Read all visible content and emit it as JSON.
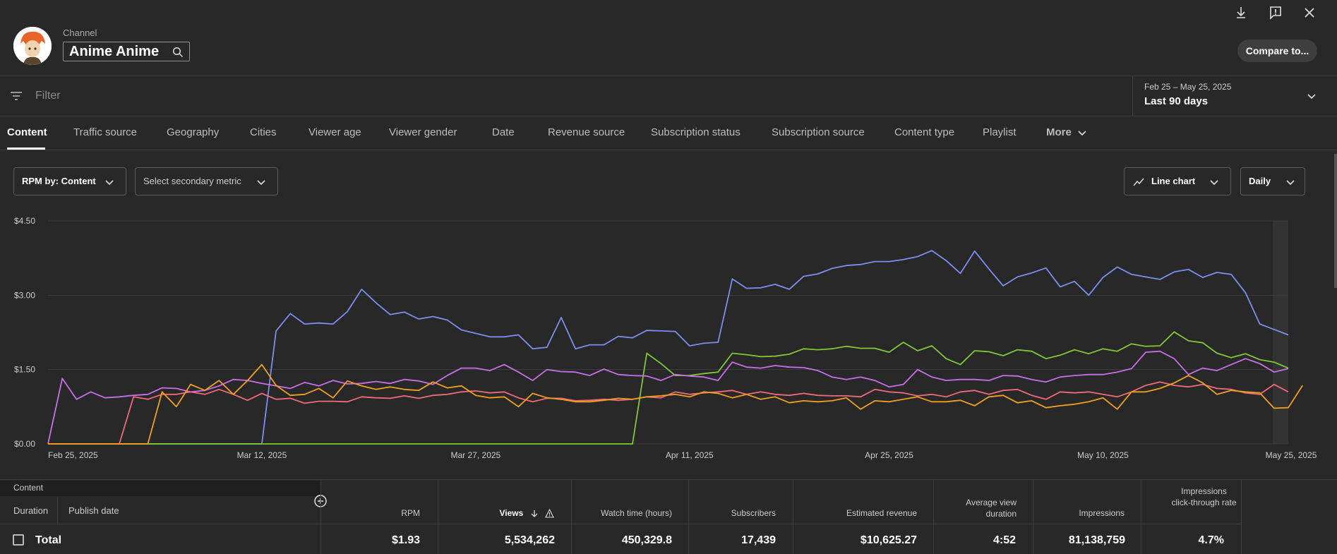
{
  "header": {
    "channel_label": "Channel",
    "channel_name": "Anime Anime",
    "compare_label": "Compare to..."
  },
  "filter": {
    "placeholder": "Filter",
    "date_range": "Feb 25 – May 25, 2025",
    "date_period": "Last 90 days"
  },
  "tabs": [
    {
      "label": "Content"
    },
    {
      "label": "Traffic source"
    },
    {
      "label": "Geography"
    },
    {
      "label": "Cities"
    },
    {
      "label": "Viewer age"
    },
    {
      "label": "Viewer gender"
    },
    {
      "label": "Date"
    },
    {
      "label": "Revenue source"
    },
    {
      "label": "Subscription status"
    },
    {
      "label": "Subscription source"
    },
    {
      "label": "Content type"
    },
    {
      "label": "Playlist"
    },
    {
      "label": "More"
    }
  ],
  "controls": {
    "metric": "RPM by: Content",
    "secondary": "Select secondary metric",
    "chart_type": "Line chart",
    "granularity": "Daily"
  },
  "chart_data": {
    "type": "line",
    "y_ticks": [
      "$4.50",
      "$3.00",
      "$1.50",
      "$0.00"
    ],
    "ylim": [
      0,
      4.5
    ],
    "x_tick_labels": [
      "Feb 25, 2025",
      "Mar 12, 2025",
      "Mar 27, 2025",
      "Apr 11, 2025",
      "Apr 25, 2025",
      "May 10, 2025",
      "May 25, 2025"
    ],
    "x_tick_days": [
      0,
      15,
      30,
      45,
      59,
      74,
      89
    ],
    "grid": true,
    "series": [
      {
        "color": "#7b8ef0",
        "values": [
          0,
          0,
          0,
          0,
          0,
          0,
          0,
          0,
          0,
          0,
          0,
          0,
          0,
          0,
          0,
          0,
          2.28,
          2.63,
          2.42,
          2.44,
          2.42,
          2.67,
          3.12,
          2.85,
          2.61,
          2.66,
          2.52,
          2.57,
          2.5,
          2.3,
          2.23,
          2.16,
          2.16,
          2.2,
          1.92,
          1.95,
          2.55,
          1.92,
          2.0,
          2.0,
          2.17,
          2.14,
          2.29,
          2.28,
          2.27,
          1.98,
          2.03,
          2.05,
          3.33,
          3.14,
          3.15,
          3.22,
          3.12,
          3.38,
          3.43,
          3.54,
          3.6,
          3.62,
          3.68,
          3.68,
          3.72,
          3.78,
          3.9,
          3.7,
          3.44,
          3.89,
          3.53,
          3.19,
          3.37,
          3.45,
          3.55,
          3.17,
          3.28,
          3.0,
          3.36,
          3.57,
          3.42,
          3.37,
          3.32,
          3.47,
          3.52,
          3.36,
          3.46,
          3.42,
          3.05,
          2.42,
          2.31,
          2.2
        ]
      },
      {
        "color": "#80c836",
        "values": [
          0,
          0,
          0,
          0,
          0,
          0,
          0,
          0,
          0,
          0,
          0,
          0,
          0,
          0,
          0,
          0,
          0,
          0,
          0,
          0,
          0,
          0,
          0,
          0,
          0,
          0,
          0,
          0,
          0,
          0,
          0,
          0,
          0,
          0,
          0,
          0,
          0,
          0,
          0,
          0,
          0,
          0,
          1.83,
          1.62,
          1.38,
          1.38,
          1.42,
          1.45,
          1.83,
          1.8,
          1.76,
          1.77,
          1.81,
          1.92,
          1.9,
          1.92,
          1.97,
          1.93,
          1.93,
          1.85,
          2.05,
          1.88,
          1.98,
          1.72,
          1.6,
          1.88,
          1.86,
          1.78,
          1.9,
          1.87,
          1.72,
          1.79,
          1.9,
          1.82,
          1.92,
          1.87,
          2.02,
          1.97,
          1.98,
          2.26,
          2.08,
          2.04,
          1.83,
          1.74,
          1.82,
          1.7,
          1.65,
          1.53
        ]
      },
      {
        "color": "#c86ee8",
        "values": [
          0,
          1.32,
          0.9,
          1.05,
          0.93,
          0.95,
          0.98,
          1.0,
          1.13,
          1.12,
          1.05,
          1.08,
          1.17,
          1.3,
          1.28,
          1.22,
          1.17,
          1.12,
          1.24,
          1.17,
          1.28,
          1.21,
          1.22,
          1.26,
          1.22,
          1.3,
          1.27,
          1.2,
          1.38,
          1.53,
          1.53,
          1.48,
          1.6,
          1.45,
          1.28,
          1.5,
          1.46,
          1.45,
          1.38,
          1.51,
          1.4,
          1.38,
          1.37,
          1.28,
          1.4,
          1.37,
          1.35,
          1.28,
          1.65,
          1.55,
          1.53,
          1.58,
          1.55,
          1.54,
          1.48,
          1.35,
          1.3,
          1.35,
          1.28,
          1.15,
          1.2,
          1.5,
          1.35,
          1.28,
          1.3,
          1.3,
          1.28,
          1.38,
          1.37,
          1.3,
          1.25,
          1.35,
          1.38,
          1.4,
          1.4,
          1.45,
          1.52,
          1.85,
          1.87,
          1.72,
          1.4,
          1.53,
          1.48,
          1.6,
          1.72,
          1.62,
          1.45,
          1.52
        ]
      },
      {
        "color": "#f06a7a",
        "values": [
          0,
          0,
          0,
          0,
          0,
          0,
          0.95,
          0.9,
          1.0,
          1.0,
          1.05,
          1.0,
          1.1,
          1.0,
          0.88,
          1.02,
          0.9,
          0.92,
          0.82,
          0.86,
          0.86,
          0.85,
          0.95,
          0.93,
          0.92,
          0.97,
          0.92,
          0.98,
          1.0,
          1.05,
          1.07,
          1.03,
          1.05,
          0.93,
          0.85,
          0.92,
          0.92,
          0.87,
          0.88,
          0.9,
          0.88,
          0.9,
          0.95,
          0.93,
          1.05,
          1.0,
          1.03,
          1.05,
          1.08,
          1.0,
          1.05,
          1.0,
          0.98,
          1.02,
          0.98,
          0.97,
          0.97,
          0.95,
          1.1,
          1.05,
          1.03,
          0.97,
          1.0,
          0.95,
          1.05,
          1.08,
          1.0,
          1.08,
          1.1,
          0.98,
          0.9,
          1.05,
          1.03,
          1.05,
          1.0,
          0.95,
          1.05,
          1.18,
          1.25,
          1.18,
          1.15,
          1.2,
          1.12,
          1.1,
          1.03,
          1.0,
          1.2,
          1.05
        ]
      },
      {
        "color": "#f0a020",
        "values": [
          0,
          0,
          0,
          0,
          0,
          0,
          0,
          0,
          1.05,
          0.75,
          1.2,
          1.08,
          1.28,
          1.0,
          1.28,
          1.6,
          1.18,
          0.98,
          1.0,
          1.12,
          0.93,
          1.27,
          1.17,
          1.1,
          1.15,
          1.1,
          1.08,
          1.25,
          1.13,
          1.17,
          0.98,
          0.93,
          0.95,
          0.75,
          1.02,
          0.93,
          0.9,
          0.85,
          0.85,
          0.88,
          0.92,
          0.9,
          0.95,
          0.97,
          1.0,
          0.95,
          1.05,
          1.02,
          0.93,
          1.0,
          0.9,
          0.95,
          0.83,
          0.87,
          0.85,
          0.87,
          0.93,
          0.7,
          0.87,
          0.85,
          0.9,
          0.95,
          0.85,
          0.85,
          0.88,
          0.77,
          0.95,
          0.98,
          0.83,
          0.87,
          0.73,
          0.77,
          0.8,
          0.85,
          0.93,
          0.7,
          1.05,
          1.05,
          1.12,
          1.23,
          1.38,
          1.23,
          1.0,
          1.08,
          1.05,
          1.03,
          0.72,
          0.73,
          1.18
        ]
      }
    ]
  },
  "table": {
    "section_label": "Content",
    "col_duration": "Duration",
    "col_publish": "Publish date",
    "headers": [
      "RPM",
      "Views",
      "Watch time (hours)",
      "Subscribers",
      "Estimated revenue",
      "Average view duration",
      "Impressions",
      "Impressions click-through rate"
    ],
    "total_label": "Total",
    "total_values": [
      "$1.93",
      "5,534,262",
      "450,329.8",
      "17,439",
      "$10,625.27",
      "4:52",
      "81,138,759",
      "4.7%"
    ]
  }
}
